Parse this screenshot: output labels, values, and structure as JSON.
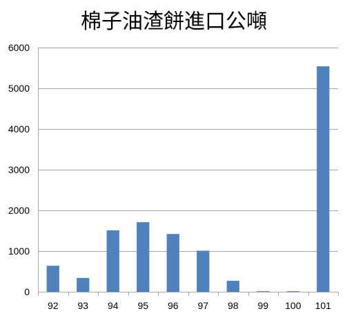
{
  "chart_data": {
    "type": "bar",
    "title": "棉子油渣餅進口公噸",
    "categories": [
      "92",
      "93",
      "94",
      "95",
      "96",
      "97",
      "98",
      "99",
      "100",
      "101"
    ],
    "values": [
      640,
      340,
      1510,
      1710,
      1420,
      1010,
      270,
      15,
      15,
      5540
    ],
    "ylim": [
      0,
      6000
    ],
    "yticks": [
      0,
      1000,
      2000,
      3000,
      4000,
      5000,
      6000
    ],
    "grid": true,
    "legend": "none",
    "bar_color": "#4f81bd"
  }
}
